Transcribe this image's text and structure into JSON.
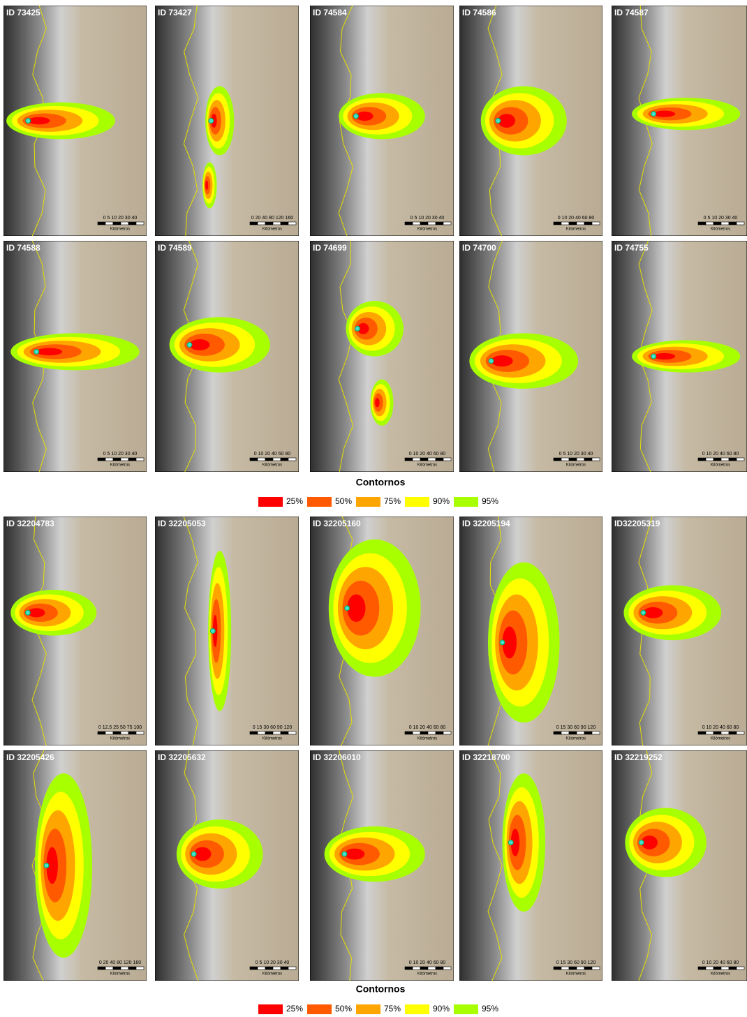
{
  "figure": {
    "panels": [
      {
        "id": "ID 73425",
        "scale": "0 5 10 20 30 40",
        "unit": "Kilómetros"
      },
      {
        "id": "ID 73427",
        "scale": "0 20 40 80 120 160",
        "unit": "Kilómetros"
      },
      {
        "id": "ID 74584",
        "scale": "0 5 10 20 30 40",
        "unit": "Kilómetros"
      },
      {
        "id": "ID 74586",
        "scale": "0 10 20 40 60 80",
        "unit": "Kilómetros"
      },
      {
        "id": "ID 74587",
        "scale": "0 5 10 20 30 40",
        "unit": "Kilómetros"
      },
      {
        "id": "ID 74588",
        "scale": "0 5 10 20 30 40",
        "unit": "Kilómetros"
      },
      {
        "id": "ID 74589",
        "scale": "0 10 20 40 60 80",
        "unit": "Kilómetros"
      },
      {
        "id": "ID 74699",
        "scale": "0 10 20 40 60 80",
        "unit": "Kilómetros"
      },
      {
        "id": "ID 74700",
        "scale": "0 5 10 20 30 40",
        "unit": "Kilómetros"
      },
      {
        "id": "ID 74755",
        "scale": "0 10 20 40 60 80",
        "unit": "Kilómetros"
      },
      {
        "id": "ID 32204783",
        "scale": "0 12.5 25 50 75 100",
        "unit": "Kilómetros"
      },
      {
        "id": "ID 32205053",
        "scale": "0 15 30 60 90 120",
        "unit": "Kilómetros"
      },
      {
        "id": "ID 32205160",
        "scale": "0 10 20 40 60 80",
        "unit": "Kilómetros"
      },
      {
        "id": "ID 32205194",
        "scale": "0 15 30 60 90 120",
        "unit": "Kilómetros"
      },
      {
        "id": "ID32205319",
        "scale": "0 10 20 40 60 80",
        "unit": "Kilómetros"
      },
      {
        "id": "ID 32205426",
        "scale": "0 20 40 80 120 160",
        "unit": "Kilómetros"
      },
      {
        "id": "ID 32205632",
        "scale": "0 5 10 20 30 40",
        "unit": "Kilómetros"
      },
      {
        "id": "ID 32206010",
        "scale": "0 10 20 40 60 80",
        "unit": "Kilómetros"
      },
      {
        "id": "ID 32218700",
        "scale": "0 15 30 60 90 120",
        "unit": "Kilómetros"
      },
      {
        "id": "ID 32219252",
        "scale": "0 10 20 40 60 80",
        "unit": "Kilómetros"
      }
    ],
    "legends": [
      {
        "title": "Contornos",
        "items": [
          {
            "label": "25%",
            "color": "#ff0000"
          },
          {
            "label": "50%",
            "color": "#ff5a00"
          },
          {
            "label": "75%",
            "color": "#ffa500"
          },
          {
            "label": "90%",
            "color": "#ffff00"
          },
          {
            "label": "95%",
            "color": "#a8ff00"
          }
        ]
      },
      {
        "title": "Contornos",
        "items": [
          {
            "label": "25%",
            "color": "#ff0000"
          },
          {
            "label": "50%",
            "color": "#ff5a00"
          },
          {
            "label": "75%",
            "color": "#ffa500"
          },
          {
            "label": "90%",
            "color": "#ffff00"
          },
          {
            "label": "95%",
            "color": "#a8ff00"
          }
        ]
      }
    ]
  }
}
